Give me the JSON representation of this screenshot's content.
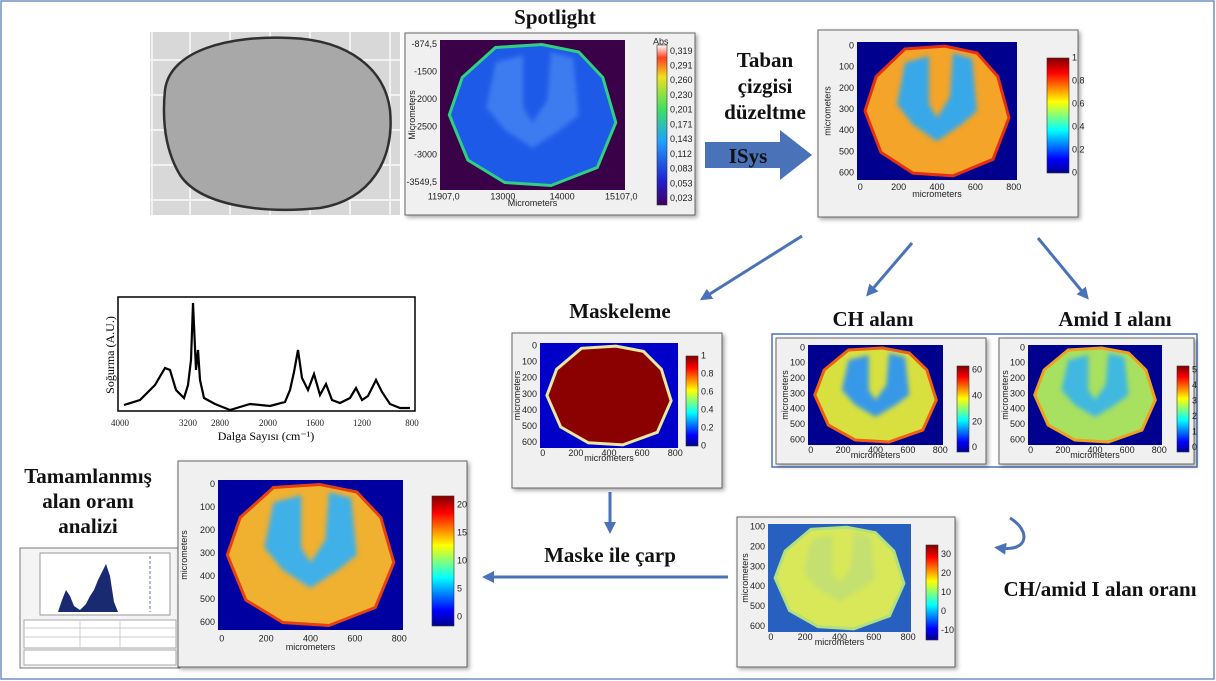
{
  "title": "Spotlight",
  "baseline_label": [
    "Taban",
    "çizgisi",
    "düzeltme"
  ],
  "isys_label": "ISys",
  "spotlight_map": {
    "yticks": [
      "-874,5",
      "-1500",
      "-2000",
      "-2500",
      "-3000",
      "-3549,5"
    ],
    "xticks": [
      "11907,0",
      "13000",
      "14000",
      "15107,0"
    ],
    "xlabel": "Micrometers",
    "ylabel": "Micrometers",
    "colorbar_title": "Abs",
    "colorbar_ticks": [
      "0,319",
      "0,291",
      "0,260",
      "0,230",
      "0,201",
      "0,171",
      "0,143",
      "0,112",
      "0,083",
      "0,053",
      "0,023"
    ]
  },
  "baseline_map": {
    "yticks": [
      "0",
      "100",
      "200",
      "300",
      "400",
      "500",
      "600"
    ],
    "xticks": [
      "0",
      "200",
      "400",
      "600",
      "800"
    ],
    "xlabel": "micrometers",
    "ylabel": "micrometers",
    "colorbar_ticks": [
      "0",
      "0.2",
      "0.4",
      "0.6",
      "0.8",
      "1"
    ]
  },
  "masking": {
    "label": "Maskeleme",
    "map": {
      "yticks": [
        "0",
        "100",
        "200",
        "300",
        "400",
        "500",
        "600"
      ],
      "xticks": [
        "0",
        "200",
        "400",
        "600",
        "800"
      ],
      "xlabel": "micrometers",
      "ylabel": "micrometers",
      "colorbar_ticks": [
        "0",
        "0.2",
        "0.4",
        "0.6",
        "0.8",
        "1"
      ]
    }
  },
  "ch_area": {
    "label": "CH alanı",
    "map": {
      "yticks": [
        "0",
        "100",
        "200",
        "300",
        "400",
        "500",
        "600"
      ],
      "xticks": [
        "0",
        "200",
        "400",
        "600",
        "800"
      ],
      "xlabel": "micrometers",
      "ylabel": "micrometers",
      "colorbar_ticks": [
        "0",
        "20",
        "40",
        "60"
      ]
    }
  },
  "amide_area": {
    "label": "Amid I alanı",
    "map": {
      "yticks": [
        "0",
        "100",
        "200",
        "300",
        "400",
        "500",
        "600"
      ],
      "xticks": [
        "0",
        "200",
        "400",
        "600",
        "800"
      ],
      "xlabel": "micrometers",
      "ylabel": "micrometers",
      "colorbar_ticks": [
        "0",
        "1",
        "2",
        "3",
        "4",
        "5"
      ]
    }
  },
  "spectrum": {
    "ylabel": "Soğurma (A.U.)",
    "xlabel": "Dalga Sayısı (cm⁻¹)",
    "xticks": [
      "4000",
      "3200",
      "2800",
      "2000",
      "1600",
      "1200",
      "800"
    ]
  },
  "completed_analysis": [
    "Tamamlanmış",
    "alan oranı",
    "analizi"
  ],
  "multiply_label": "Maske ile çarp",
  "result_map": {
    "yticks": [
      "0",
      "100",
      "200",
      "300",
      "400",
      "500",
      "600"
    ],
    "xticks": [
      "0",
      "200",
      "400",
      "600",
      "800"
    ],
    "xlabel": "micrometers",
    "ylabel": "micrometers",
    "colorbar_ticks": [
      "0",
      "5",
      "10",
      "15",
      "20"
    ]
  },
  "ratio": {
    "label": "CH/amid I alan oranı",
    "map": {
      "yticks": [
        "100",
        "200",
        "300",
        "400",
        "500",
        "600"
      ],
      "xticks": [
        "0",
        "200",
        "400",
        "600",
        "800"
      ],
      "xlabel": "micrometers",
      "ylabel": "micrometers",
      "colorbar_ticks": [
        "-10",
        "0",
        "10",
        "20",
        "30"
      ]
    }
  }
}
